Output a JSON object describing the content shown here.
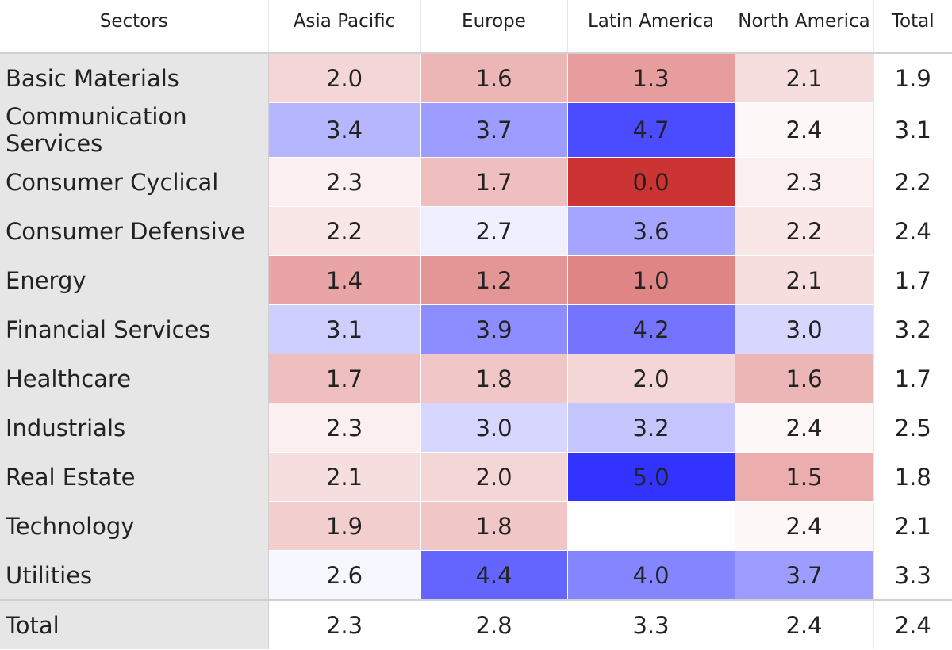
{
  "chart_data": {
    "type": "heatmap",
    "corner_label": "Sectors",
    "columns": [
      "Asia Pacific",
      "Europe",
      "Latin America",
      "North America"
    ],
    "total_label": "Total",
    "rows": [
      {
        "label": "Basic Materials",
        "values": [
          "2.0",
          "1.6",
          "1.3",
          "2.1"
        ],
        "total": "1.9"
      },
      {
        "label": "Communication Services",
        "values": [
          "3.4",
          "3.7",
          "4.7",
          "2.4"
        ],
        "total": "3.1"
      },
      {
        "label": "Consumer Cyclical",
        "values": [
          "2.3",
          "1.7",
          "0.0",
          "2.3"
        ],
        "total": "2.2"
      },
      {
        "label": "Consumer Defensive",
        "values": [
          "2.2",
          "2.7",
          "3.6",
          "2.2"
        ],
        "total": "2.4"
      },
      {
        "label": "Energy",
        "values": [
          "1.4",
          "1.2",
          "1.0",
          "2.1"
        ],
        "total": "1.7"
      },
      {
        "label": "Financial Services",
        "values": [
          "3.1",
          "3.9",
          "4.2",
          "3.0"
        ],
        "total": "3.2"
      },
      {
        "label": "Healthcare",
        "values": [
          "1.7",
          "1.8",
          "2.0",
          "1.6"
        ],
        "total": "1.7"
      },
      {
        "label": "Industrials",
        "values": [
          "2.3",
          "3.0",
          "3.2",
          "2.4"
        ],
        "total": "2.5"
      },
      {
        "label": "Real Estate",
        "values": [
          "2.1",
          "2.0",
          "5.0",
          "1.5"
        ],
        "total": "1.8"
      },
      {
        "label": "Technology",
        "values": [
          "1.9",
          "1.8",
          "",
          "2.4"
        ],
        "total": "2.1"
      },
      {
        "label": "Utilities",
        "values": [
          "2.6",
          "4.4",
          "4.0",
          "3.7"
        ],
        "total": "3.3"
      }
    ],
    "column_totals": {
      "label": "Total",
      "values": [
        "2.3",
        "2.8",
        "3.3",
        "2.4"
      ],
      "total": "2.4"
    },
    "color_scale": {
      "min": 0.0,
      "mid": 2.5,
      "max": 5.0,
      "low_color": "#cc3333",
      "mid_color": "#ffffff",
      "high_color": "#3333ff"
    }
  }
}
